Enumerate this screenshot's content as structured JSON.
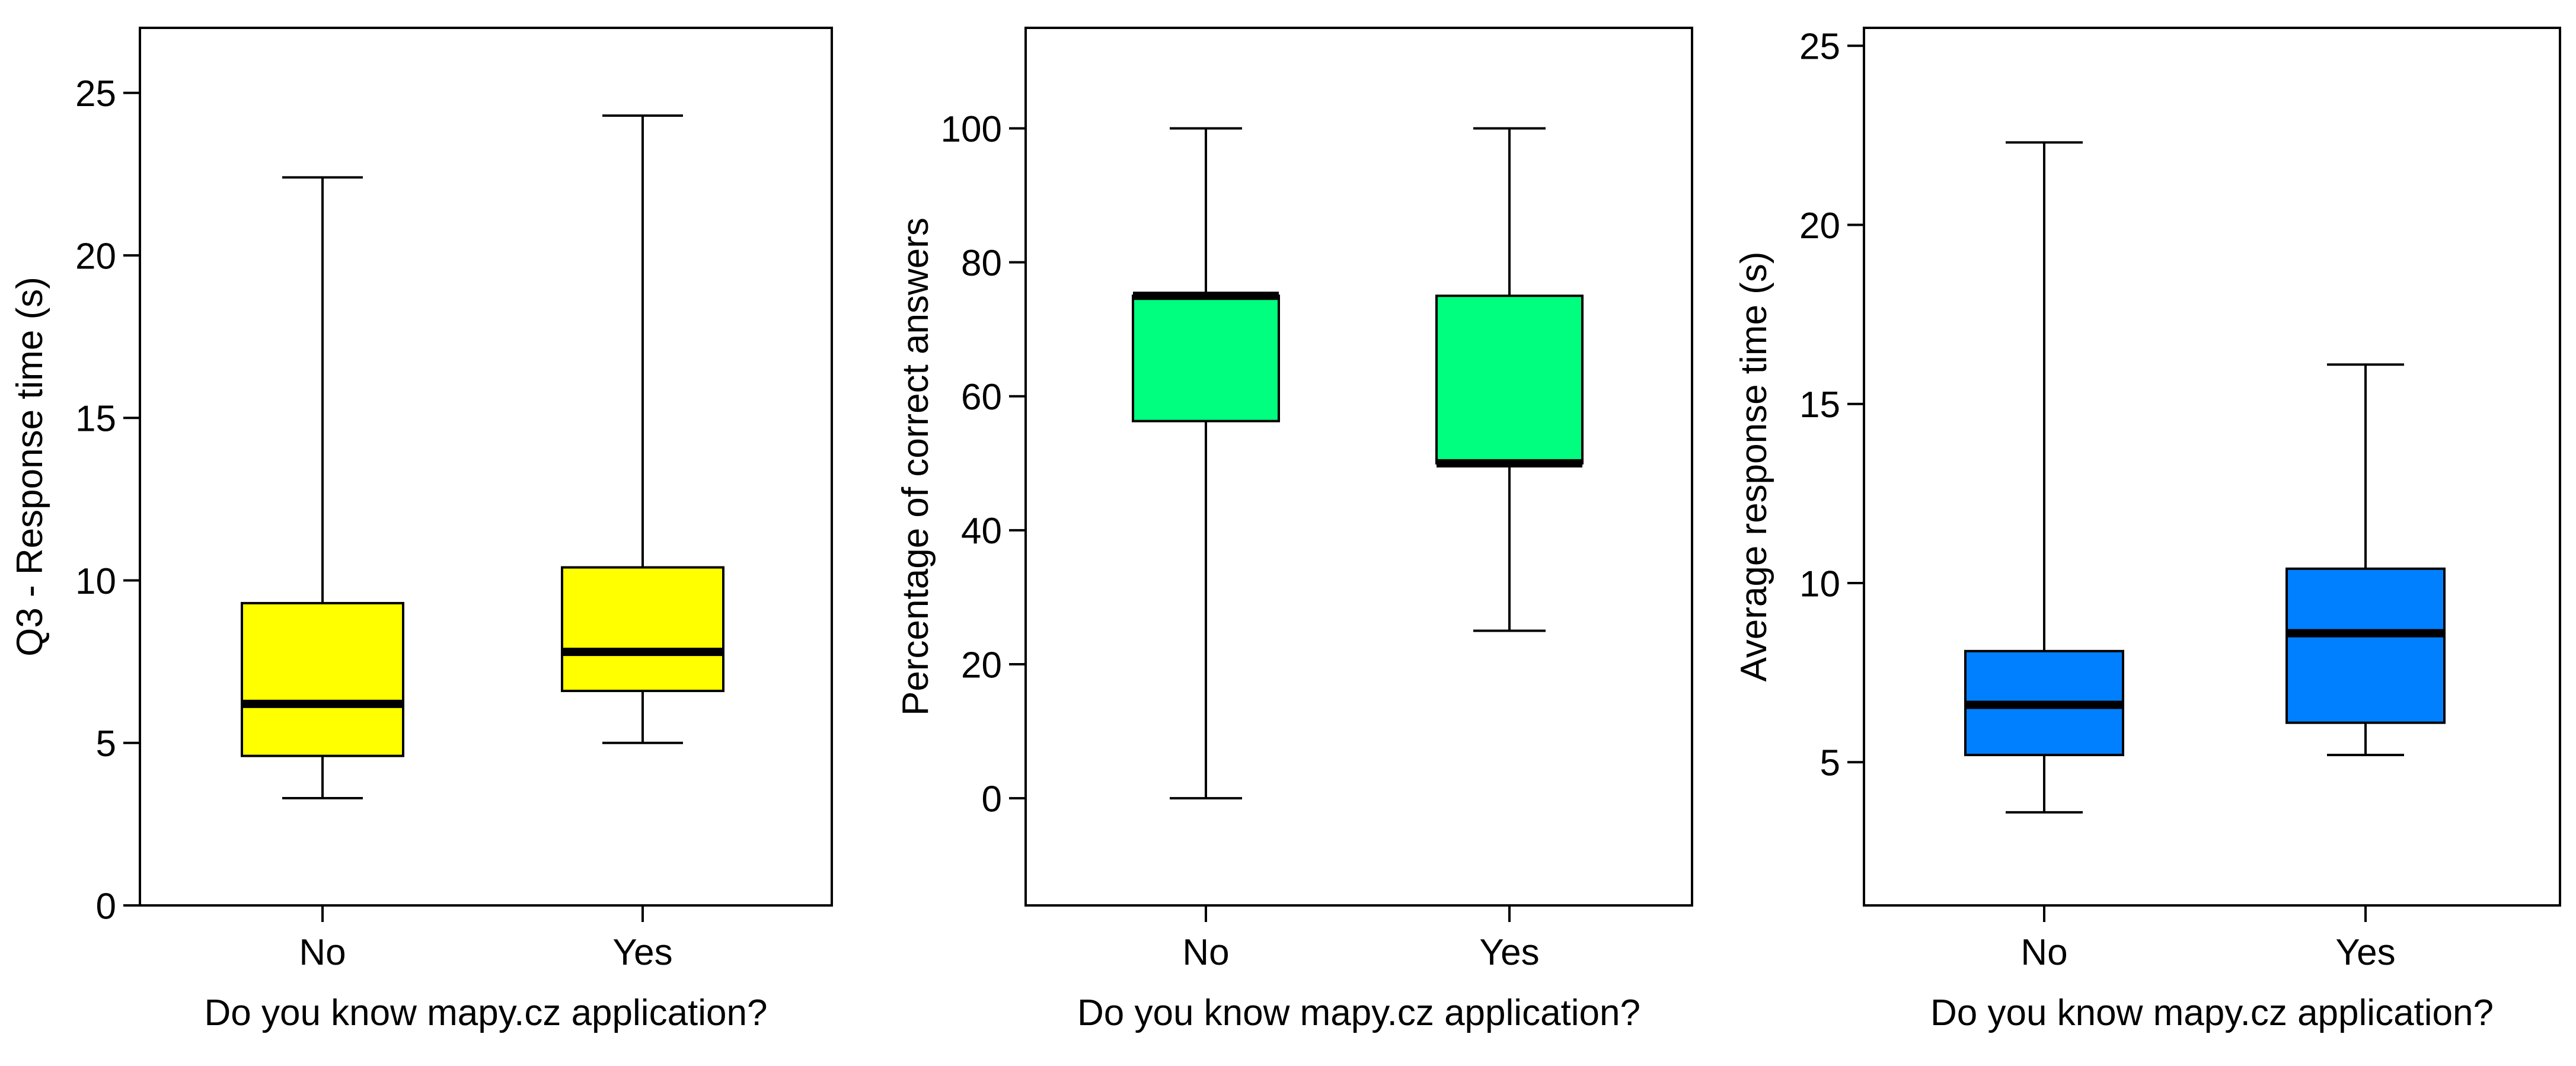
{
  "chart_data": [
    {
      "type": "box",
      "xlabel": "Do you know mapy.cz application?",
      "ylabel": "Q3 - Response time (s)",
      "ylim": [
        0,
        27
      ],
      "yticks": [
        0,
        5,
        10,
        15,
        20,
        25
      ],
      "categories": [
        "No",
        "Yes"
      ],
      "color": "#ffff00",
      "boxes": [
        {
          "category": "No",
          "min": 3.3,
          "q1": 4.6,
          "median": 6.2,
          "q3": 9.3,
          "max": 22.4
        },
        {
          "category": "Yes",
          "min": 5.0,
          "q1": 6.6,
          "median": 7.8,
          "q3": 10.4,
          "max": 24.3
        }
      ]
    },
    {
      "type": "box",
      "xlabel": "Do you know mapy.cz application?",
      "ylabel": "Percentage of correct answers",
      "ylim": [
        -16,
        115
      ],
      "yticks": [
        0,
        20,
        40,
        60,
        80,
        100
      ],
      "categories": [
        "No",
        "Yes"
      ],
      "color": "#00ff7f",
      "boxes": [
        {
          "category": "No",
          "min": 0,
          "q1": 56.3,
          "median": 75,
          "q3": 75,
          "max": 100
        },
        {
          "category": "Yes",
          "min": 25,
          "q1": 50,
          "median": 50,
          "q3": 75,
          "max": 100
        }
      ]
    },
    {
      "type": "box",
      "xlabel": "Do you know mapy.cz application?",
      "ylabel": "Average response time (s)",
      "ylim": [
        1.0,
        25.5
      ],
      "yticks": [
        5,
        10,
        15,
        20,
        25
      ],
      "categories": [
        "No",
        "Yes"
      ],
      "color": "#0080ff",
      "boxes": [
        {
          "category": "No",
          "min": 3.6,
          "q1": 5.2,
          "median": 6.6,
          "q3": 8.1,
          "max": 22.3
        },
        {
          "category": "Yes",
          "min": 5.2,
          "q1": 6.1,
          "median": 8.6,
          "q3": 10.4,
          "max": 16.1
        }
      ]
    }
  ]
}
